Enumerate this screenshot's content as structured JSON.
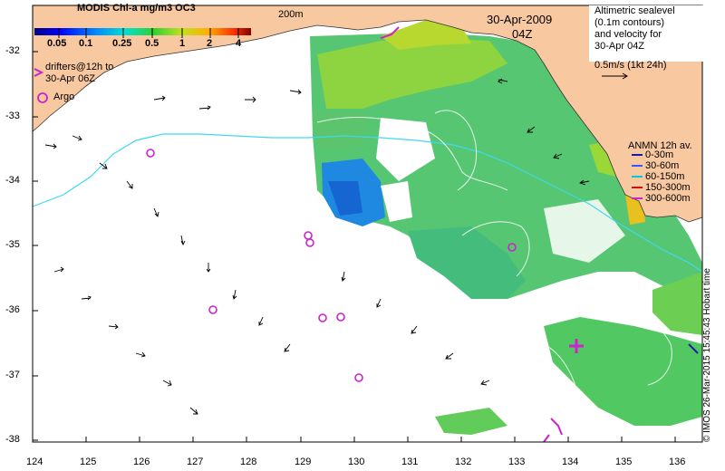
{
  "colorbar": {
    "title": "MODIS Chl-a mg/m3 OC3",
    "ticks": [
      "0.05",
      "0.1",
      "0.25",
      "0.5",
      "1",
      "2",
      "4"
    ]
  },
  "legend": {
    "drifters": "drifters@12h to\n30-Apr 06Z",
    "argo": "Argo"
  },
  "contour_label": "200m",
  "date": "30-Apr-2009",
  "time": "04Z",
  "altimetry": {
    "text": "Altimetric sealevel\n(0.1m contours)\nand velocity for\n30-Apr 04Z",
    "scale": "0.5m/s (1kt 24h)"
  },
  "anmn": {
    "title": "ANMN 12h av.",
    "items": [
      {
        "label": "0-30m",
        "color": "#1a1aa8"
      },
      {
        "label": "30-60m",
        "color": "#3355ff"
      },
      {
        "label": "60-150m",
        "color": "#00c8e0"
      },
      {
        "label": "150-300m",
        "color": "#d01010"
      },
      {
        "label": "300-600m",
        "color": "#d020d0"
      }
    ]
  },
  "credit": "© IMOS 26-Mar-2015 15:45:43 Hobart time",
  "axes": {
    "y_ticks": [
      "-32",
      "-33",
      "-34",
      "-35",
      "-36",
      "-37",
      "-38"
    ],
    "x_ticks": [
      "124",
      "125",
      "126",
      "127",
      "128",
      "129",
      "130",
      "131",
      "132",
      "133",
      "134",
      "135",
      "136"
    ]
  },
  "colors": {
    "land": "#f8c8a0",
    "argo": "#cc22cc",
    "contour_200m": "#40d8f0"
  }
}
